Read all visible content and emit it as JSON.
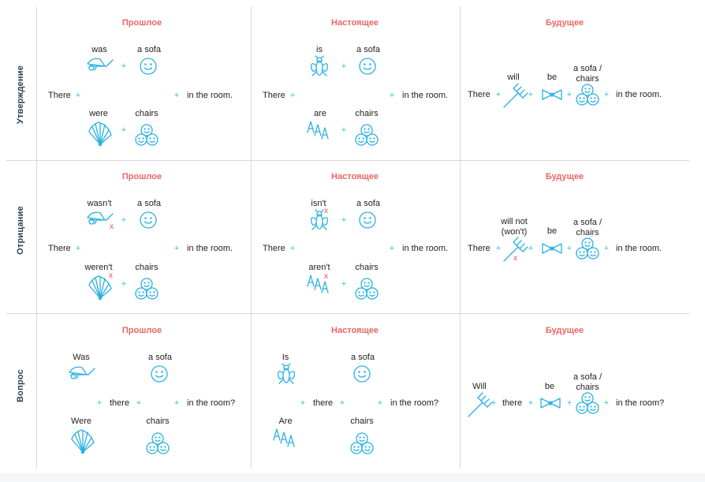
{
  "rows": [
    {
      "label": "Утверждение",
      "past": {
        "header": "Прошлое",
        "there": "There",
        "top_verb": "was",
        "top_noun": "a sofa",
        "bottom_verb": "were",
        "bottom_noun": "chairs",
        "end": "in the room."
      },
      "present": {
        "header": "Настоящее",
        "there": "There",
        "top_verb": "is",
        "top_noun": "a sofa",
        "bottom_verb": "are",
        "bottom_noun": "chairs",
        "end": "in the room."
      },
      "future": {
        "header": "Будущее",
        "there": "There",
        "verb": "will",
        "be": "be",
        "noun": "a sofa / chairs",
        "end": "in the room."
      }
    },
    {
      "label": "Отрицание",
      "past": {
        "header": "Прошлое",
        "there": "There",
        "top_verb": "wasn't",
        "top_noun": "a sofa",
        "bottom_verb": "weren't",
        "bottom_noun": "chairs",
        "end": "in the room."
      },
      "present": {
        "header": "Настоящее",
        "there": "There",
        "top_verb": "isn't",
        "top_noun": "a sofa",
        "bottom_verb": "aren't",
        "bottom_noun": "chairs",
        "end": "in the room."
      },
      "future": {
        "header": "Будущее",
        "there": "There",
        "verb": "will not (won't)",
        "be": "be",
        "noun": "a sofa / chairs",
        "end": "in the room."
      }
    },
    {
      "label": "Вопрос",
      "past": {
        "header": "Прошлое",
        "there": "there",
        "top_verb": "Was",
        "top_noun": "a sofa",
        "bottom_verb": "Were",
        "bottom_noun": "chairs",
        "end": "in the room?"
      },
      "present": {
        "header": "Настоящее",
        "there": "there",
        "top_verb": "Is",
        "top_noun": "a sofa",
        "bottom_verb": "Are",
        "bottom_noun": "chairs",
        "end": "in the room?"
      },
      "future": {
        "header": "Будущее",
        "there": "there",
        "verb": "Will",
        "be": "be",
        "noun": "a sofa / chairs",
        "end": "in the room?"
      }
    }
  ],
  "plus_sign": "+",
  "negation_mark": "x",
  "colors": {
    "header": "#ef6464",
    "icon": "#29b0e2",
    "rowlabel": "#2c3e57",
    "negation": "#ef4b4b",
    "grid": "#d9d9d9"
  },
  "icons": {
    "was": "wheelbarrow-icon",
    "were": "hand-fan-icon",
    "is": "fly-icon",
    "are": "letters-aaa-icon",
    "will": "pitchfork-icon",
    "be": "bow-tie-icon",
    "a_sofa": "smiley-face-icon",
    "chairs": "three-smiley-faces-icon"
  }
}
